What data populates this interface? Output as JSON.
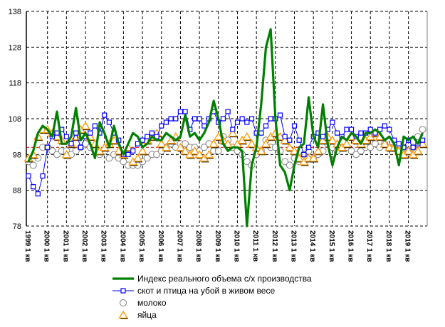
{
  "chart_data": {
    "type": "line",
    "title": "",
    "xlabel": "",
    "ylabel": "",
    "ylim": [
      78,
      138
    ],
    "yticks": [
      78,
      88,
      98,
      108,
      118,
      128,
      138
    ],
    "reference_line": 100,
    "grid": true,
    "legend_position": "bottom",
    "x_tick_labels": [
      "1999 1 кв",
      "2000 1 кв",
      "2001 1 кв",
      "2002 1 кв",
      "2003 1 кв",
      "2004 1 кв",
      "2005 1 кв",
      "2006 1 кв",
      "2007 1 кв",
      "2008 1 кв",
      "2009 1 кв",
      "2010 1 кв",
      "2011 1 кв",
      "2012 1 кв",
      "2013 1 кв",
      "2014 1 кв",
      "2015 1 кв",
      "2016 1 кв",
      "2017 1 кв",
      "2018 1 кв",
      "2019 1 кв"
    ],
    "series": [
      {
        "name": "Индекс реального объема с/х производства",
        "color": "#008000",
        "marker": "none",
        "values": [
          96,
          99,
          104,
          106,
          105,
          103,
          110,
          101,
          101,
          103,
          111,
          102,
          104,
          101,
          97,
          107,
          104,
          100,
          106,
          101,
          98,
          101,
          104,
          103,
          100,
          101,
          103,
          102,
          102,
          104,
          103,
          102,
          103,
          109,
          103,
          104,
          102,
          104,
          107,
          113,
          108,
          101,
          99,
          100,
          100,
          99,
          78,
          95,
          100,
          112,
          128,
          133,
          108,
          95,
          93,
          88,
          95,
          100,
          101,
          114,
          103,
          100,
          112,
          101,
          95,
          100,
          103,
          102,
          104,
          103,
          101,
          104,
          104,
          105,
          104,
          102,
          103,
          101,
          95,
          103,
          102,
          103,
          101,
          104
        ]
      },
      {
        "name": "скот и птица на убой в живом весе",
        "color": "#0000ff",
        "marker": "square",
        "values": [
          92,
          89,
          87,
          92,
          100,
          103,
          104,
          105,
          103,
          101,
          104,
          100,
          103,
          104,
          106,
          104,
          109,
          107,
          104,
          102,
          98,
          98,
          99,
          101,
          102,
          103,
          104,
          103,
          106,
          107,
          108,
          108,
          110,
          110,
          105,
          108,
          108,
          106,
          108,
          110,
          107,
          108,
          110,
          105,
          107,
          108,
          107,
          108,
          104,
          104,
          106,
          108,
          108,
          109,
          103,
          102,
          106,
          102,
          98,
          100,
          103,
          104,
          103,
          105,
          107,
          104,
          103,
          105,
          105,
          103,
          104,
          104,
          105,
          104,
          105,
          106,
          105,
          102,
          101,
          100,
          102,
          100,
          101,
          102
        ]
      },
      {
        "name": "молоко",
        "color": "#808080",
        "marker": "circle",
        "values": [
          96,
          95,
          97,
          100,
          100,
          99,
          98,
          99,
          99,
          98,
          99,
          100,
          101,
          100,
          99,
          98,
          99,
          97,
          98,
          97,
          96,
          95,
          95,
          95,
          96,
          97,
          98,
          98,
          99,
          100,
          101,
          100,
          101,
          101,
          100,
          100,
          99,
          100,
          101,
          99,
          99,
          103,
          102,
          100,
          99,
          98,
          96,
          95,
          98,
          99,
          102,
          100,
          100,
          99,
          96,
          95,
          97,
          96,
          98,
          99,
          97,
          98,
          99,
          101,
          100,
          99,
          100,
          100,
          99,
          98,
          99,
          100,
          100,
          101,
          100,
          101,
          100,
          100,
          99,
          100,
          99,
          100,
          103,
          105
        ]
      },
      {
        "name": "яйца",
        "color": "#ff9900",
        "marker": "triangle",
        "values": [
          97,
          98,
          103,
          105,
          105,
          104,
          103,
          102,
          98,
          101,
          103,
          105,
          106,
          103,
          101,
          99,
          100,
          101,
          102,
          99,
          98,
          100,
          96,
          97,
          99,
          102,
          103,
          104,
          101,
          100,
          102,
          103,
          100,
          99,
          98,
          99,
          98,
          97,
          98,
          101,
          103,
          102,
          101,
          104,
          101,
          102,
          103,
          101,
          100,
          99,
          101,
          103,
          104,
          103,
          102,
          100,
          99,
          97,
          96,
          97,
          97,
          99,
          102,
          103,
          102,
          101,
          100,
          101,
          103,
          102,
          101,
          102,
          103,
          104,
          103,
          101,
          100,
          100,
          99,
          98,
          99,
          98,
          99,
          101
        ]
      }
    ]
  }
}
